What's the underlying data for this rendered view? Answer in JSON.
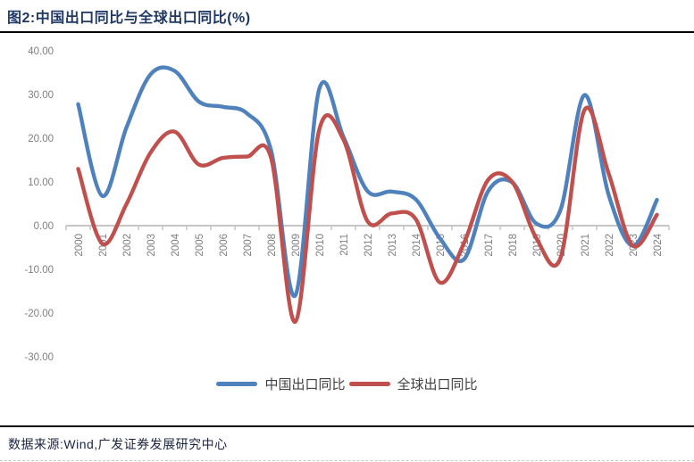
{
  "figure": {
    "title": "图2:中国出口同比与全球出口同比(%)",
    "source": "数据来源:Wind,广发证券发展研究中心"
  },
  "chart_data": {
    "type": "line",
    "smooth": true,
    "title": "中国出口同比与全球出口同比(%)",
    "x": [
      2000,
      2001,
      2002,
      2003,
      2004,
      2005,
      2006,
      2007,
      2008,
      2009,
      2010,
      2011,
      2012,
      2013,
      2014,
      2015,
      2016,
      2017,
      2018,
      2019,
      2020,
      2021,
      2022,
      2023,
      2024
    ],
    "series": [
      {
        "name": "中国出口同比",
        "color": "#4f81bd",
        "values": [
          27.8,
          6.8,
          22.4,
          34.6,
          35.4,
          28.4,
          27.2,
          25.7,
          17.2,
          -16.0,
          31.3,
          20.3,
          7.9,
          7.8,
          6.0,
          -2.9,
          -7.7,
          7.9,
          9.9,
          0.5,
          3.6,
          29.9,
          7.0,
          -4.6,
          5.9
        ]
      },
      {
        "name": "全球出口同比",
        "color": "#c0504d",
        "values": [
          13.0,
          -4.1,
          4.9,
          16.7,
          21.5,
          14.0,
          15.5,
          15.8,
          15.5,
          -22.0,
          22.0,
          19.7,
          1.0,
          2.8,
          1.5,
          -13.0,
          -4.0,
          10.5,
          10.0,
          -2.9,
          -7.4,
          26.5,
          11.9,
          -4.6,
          2.5
        ]
      }
    ],
    "ylim": [
      -30,
      40
    ],
    "yticks": [
      40,
      30,
      20,
      10,
      0,
      -10,
      -20,
      -30
    ],
    "ytick_format": "2dp",
    "xlabel": "",
    "ylabel": "",
    "grid": false,
    "legend_position": "bottom",
    "axis_color": "#c6c6c6",
    "tick_label_color": "#7f7f7f"
  }
}
